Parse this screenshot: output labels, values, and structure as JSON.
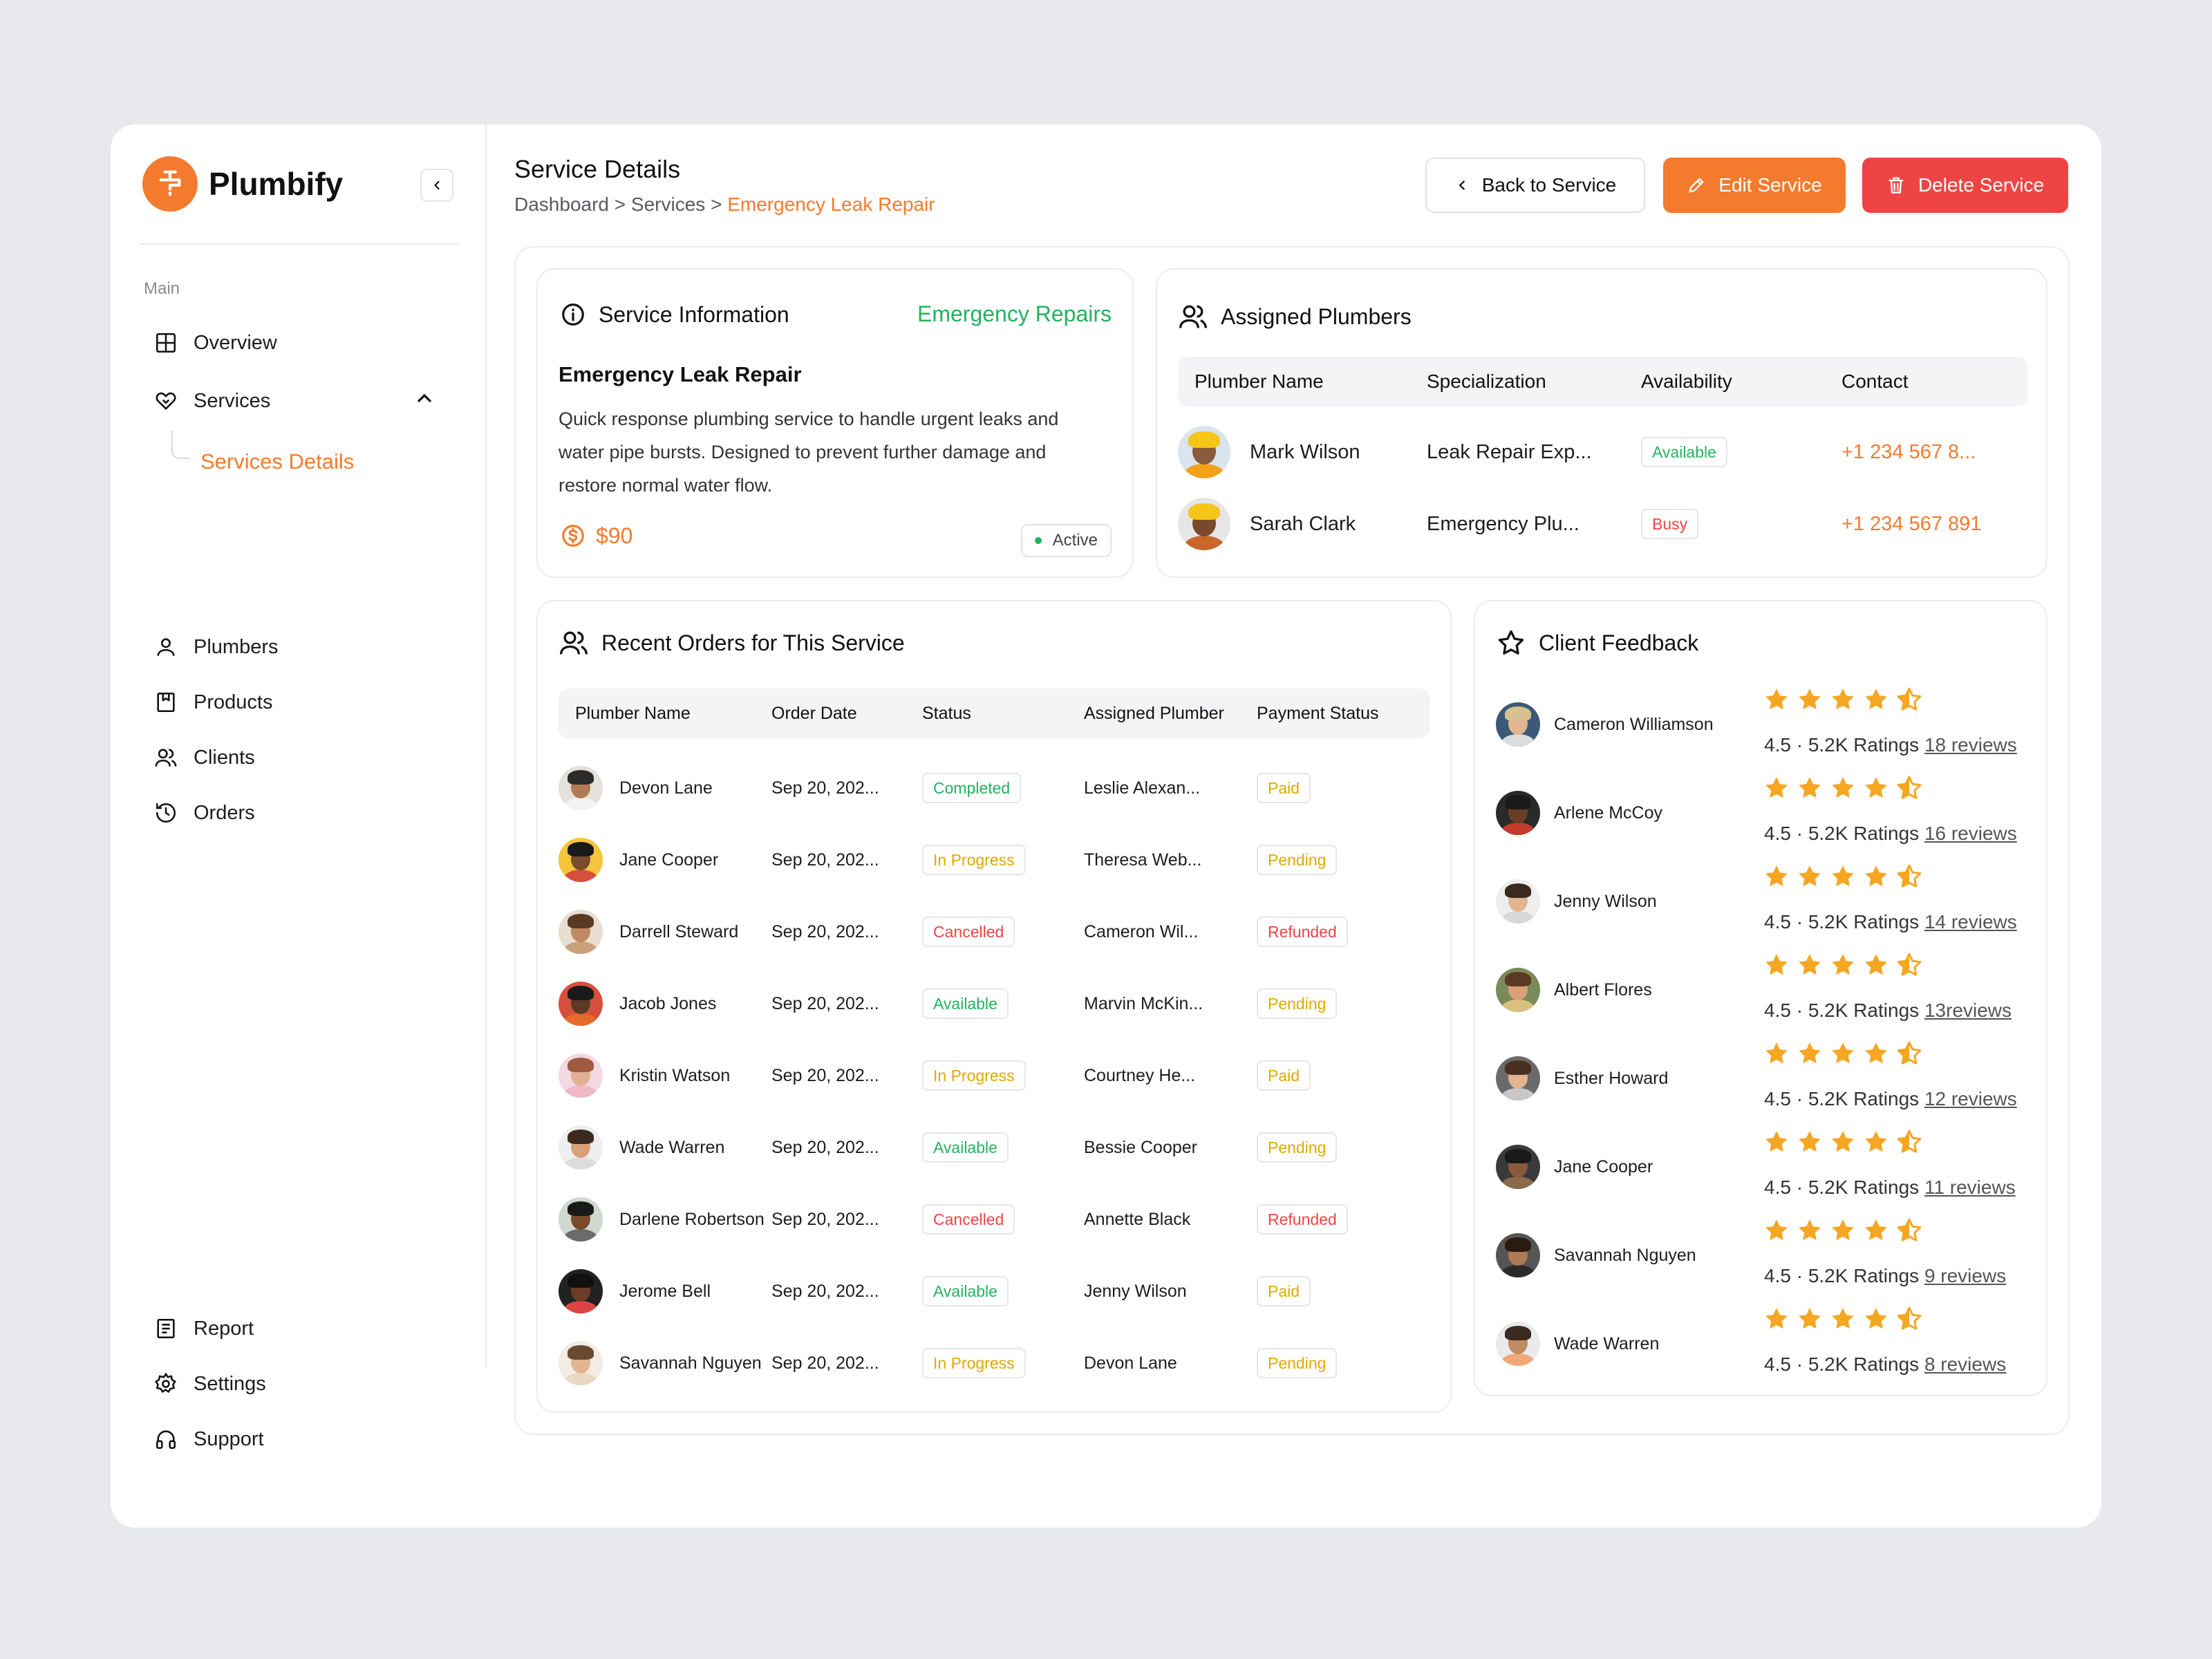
{
  "brand": {
    "name": "Plumbify",
    "accent": "#f47a2e"
  },
  "sidebar": {
    "section": "Main",
    "items": [
      {
        "label": "Overview",
        "icon": "grid-icon"
      },
      {
        "label": "Services",
        "icon": "heart-handshake-icon"
      },
      {
        "label": "Plumbers",
        "icon": "user-icon"
      },
      {
        "label": "Products",
        "icon": "bookmark-box-icon"
      },
      {
        "label": "Clients",
        "icon": "users-icon"
      },
      {
        "label": "Orders",
        "icon": "history-icon"
      }
    ],
    "sub_item": "Services Details",
    "bottom": [
      {
        "label": "Report",
        "icon": "report-icon"
      },
      {
        "label": "Settings",
        "icon": "gear-icon"
      },
      {
        "label": "Support",
        "icon": "headphones-icon"
      }
    ]
  },
  "header": {
    "title": "Service Details",
    "breadcrumb": {
      "part1": "Dashboard",
      "sep": ">",
      "part2": "Services",
      "current": "Emergency Leak Repair"
    },
    "back_label": "Back to Service",
    "edit_label": "Edit Service",
    "delete_label": "Delete Service"
  },
  "service_info": {
    "title": "Service Information",
    "category": "Emergency Repairs",
    "name": "Emergency Leak Repair",
    "description": "Quick response plumbing service to handle urgent leaks and water pipe bursts. Designed to prevent further damage and restore normal water flow.",
    "price": "$90",
    "status": "Active"
  },
  "assigned": {
    "title": "Assigned Plumbers",
    "columns": [
      "Plumber Name",
      "Specialization",
      "Availability",
      "Contact"
    ],
    "rows": [
      {
        "name": "Mark Wilson",
        "spec": "Leak Repair Exp...",
        "avail": "Available",
        "avail_color": "g",
        "contact": "+1 234 567 8..."
      },
      {
        "name": "Sarah Clark",
        "spec": "Emergency Plu...",
        "avail": "Busy",
        "avail_color": "r",
        "contact": "+1 234 567 891"
      }
    ]
  },
  "orders": {
    "title": "Recent Orders for This Service",
    "columns": [
      "Plumber Name",
      "Order Date",
      "Status",
      "Assigned Plumber",
      "Payment Status"
    ],
    "rows": [
      {
        "name": "Devon Lane",
        "date": "Sep 20, 202...",
        "status": "Completed",
        "sc": "g",
        "assigned": "Leslie Alexan...",
        "pay": "Paid",
        "pc": "y"
      },
      {
        "name": "Jane Cooper",
        "date": "Sep 20, 202...",
        "status": "In Progress",
        "sc": "y",
        "assigned": "Theresa Web...",
        "pay": "Pending",
        "pc": "y"
      },
      {
        "name": "Darrell Steward",
        "date": "Sep 20, 202...",
        "status": "Cancelled",
        "sc": "r",
        "assigned": "Cameron Wil...",
        "pay": "Refunded",
        "pc": "r"
      },
      {
        "name": "Jacob Jones",
        "date": "Sep 20, 202...",
        "status": "Available",
        "sc": "g",
        "assigned": "Marvin McKin...",
        "pay": "Pending",
        "pc": "y"
      },
      {
        "name": "Kristin Watson",
        "date": "Sep 20, 202...",
        "status": "In Progress",
        "sc": "y",
        "assigned": "Courtney He...",
        "pay": "Paid",
        "pc": "y"
      },
      {
        "name": "Wade Warren",
        "date": "Sep 20, 202...",
        "status": "Available",
        "sc": "g",
        "assigned": "Bessie Cooper",
        "pay": "Pending",
        "pc": "y"
      },
      {
        "name": "Darlene Robertson",
        "date": "Sep 20, 202...",
        "status": "Cancelled",
        "sc": "r",
        "assigned": "Annette Black",
        "pay": "Refunded",
        "pc": "r"
      },
      {
        "name": "Jerome Bell",
        "date": "Sep 20, 202...",
        "status": "Available",
        "sc": "g",
        "assigned": "Jenny Wilson",
        "pay": "Paid",
        "pc": "y"
      },
      {
        "name": "Savannah Nguyen",
        "date": "Sep 20, 202...",
        "status": "In Progress",
        "sc": "y",
        "assigned": "Devon Lane",
        "pay": "Pending",
        "pc": "y"
      }
    ]
  },
  "feedback": {
    "title": "Client Feedback",
    "rows": [
      {
        "name": "Cameron Williamson",
        "score": "4.5",
        "ratings": "5.2K Ratings",
        "reviews": "18 reviews",
        "stars": 4.5
      },
      {
        "name": "Arlene McCoy",
        "score": "4.5",
        "ratings": "5.2K Ratings",
        "reviews": "16 reviews",
        "stars": 4.5
      },
      {
        "name": "Jenny Wilson",
        "score": "4.5",
        "ratings": "5.2K Ratings",
        "reviews": "14 reviews",
        "stars": 4.5
      },
      {
        "name": "Albert Flores",
        "score": "4.5",
        "ratings": "5.2K Ratings",
        "reviews": "13reviews",
        "stars": 4.5
      },
      {
        "name": "Esther Howard",
        "score": "4.5",
        "ratings": "5.2K Ratings",
        "reviews": "12 reviews",
        "stars": 4.5
      },
      {
        "name": "Jane Cooper",
        "score": "4.5",
        "ratings": "5.2K Ratings",
        "reviews": "11 reviews",
        "stars": 4.5
      },
      {
        "name": "Savannah Nguyen",
        "score": "4.5",
        "ratings": "5.2K Ratings",
        "reviews": "9 reviews",
        "stars": 4.5
      },
      {
        "name": "Wade Warren",
        "score": "4.5",
        "ratings": "5.2K Ratings",
        "reviews": "8 reviews",
        "stars": 4.5
      }
    ]
  }
}
